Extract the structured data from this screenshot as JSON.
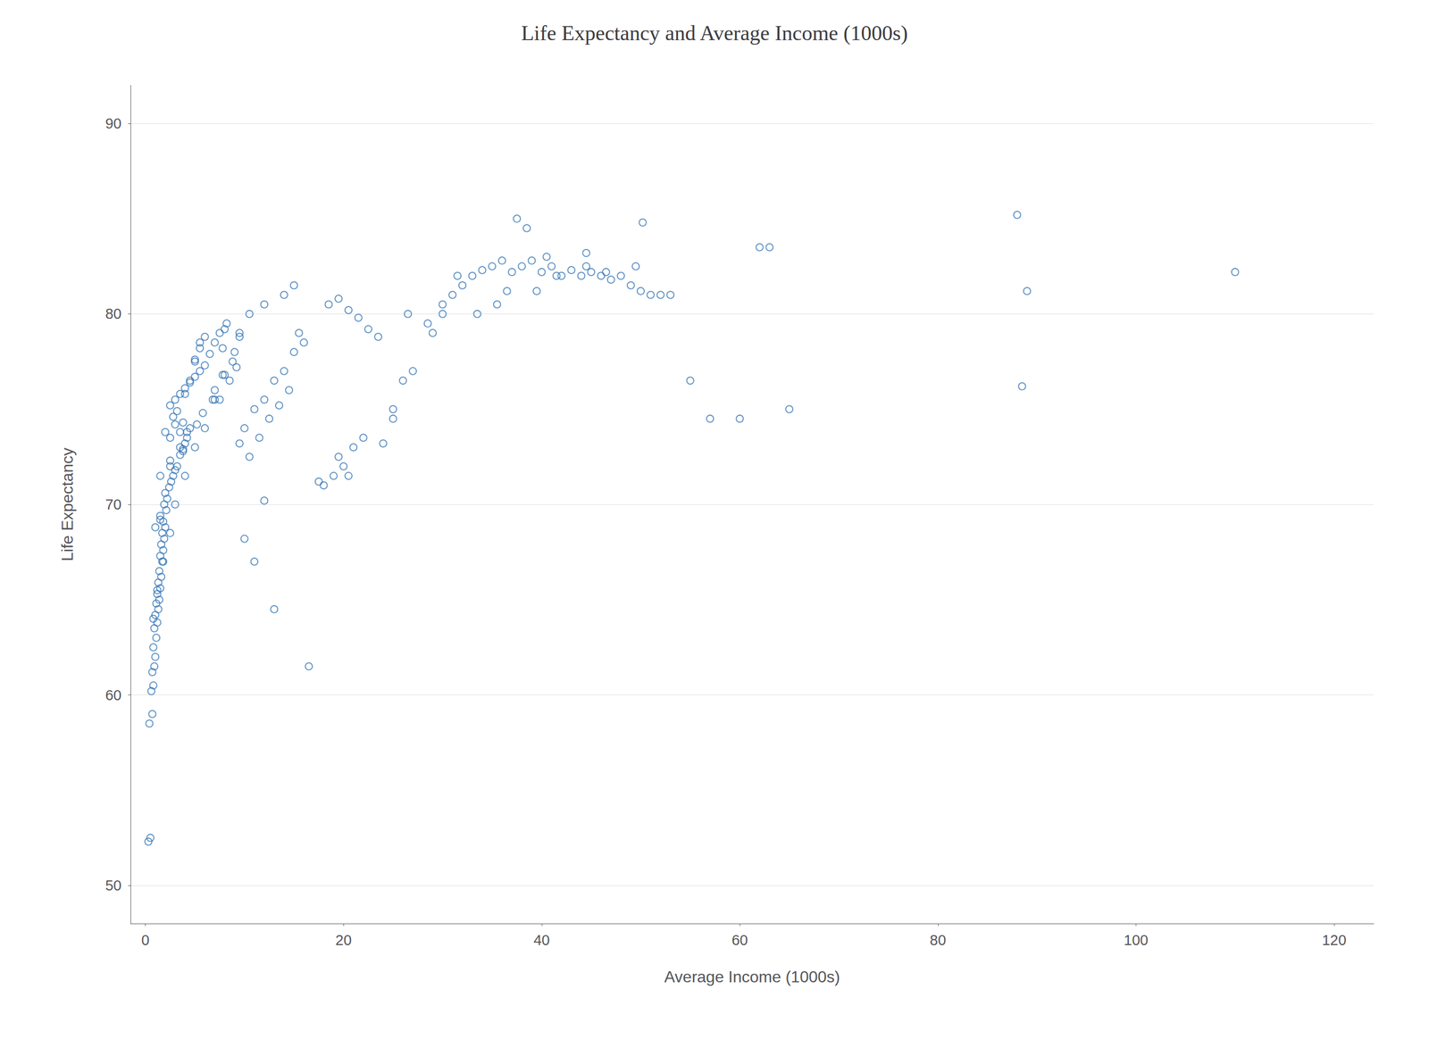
{
  "chart_data": {
    "type": "scatter",
    "title": "Life Expectancy and Average Income (1000s)",
    "xlabel": "Average Income (1000s)",
    "ylabel": "Life Expectancy",
    "xlim": [
      -1.5,
      124
    ],
    "ylim": [
      48,
      92
    ],
    "xticks": [
      0,
      20,
      40,
      60,
      80,
      100,
      120
    ],
    "yticks": [
      50,
      60,
      70,
      80,
      90
    ],
    "color": "#3575b5",
    "marker": "open-circle",
    "grid": "y",
    "points": [
      [
        0.3,
        52.3
      ],
      [
        0.5,
        52.5
      ],
      [
        0.4,
        58.5
      ],
      [
        0.7,
        59.0
      ],
      [
        0.6,
        60.2
      ],
      [
        0.8,
        60.5
      ],
      [
        0.7,
        61.2
      ],
      [
        0.9,
        61.5
      ],
      [
        1.0,
        62.0
      ],
      [
        0.8,
        62.5
      ],
      [
        1.1,
        63.0
      ],
      [
        0.9,
        63.5
      ],
      [
        1.2,
        63.8
      ],
      [
        1.0,
        64.2
      ],
      [
        1.3,
        64.5
      ],
      [
        1.1,
        64.8
      ],
      [
        1.4,
        65.0
      ],
      [
        1.2,
        65.3
      ],
      [
        1.5,
        65.6
      ],
      [
        1.3,
        65.9
      ],
      [
        1.6,
        66.2
      ],
      [
        1.4,
        66.5
      ],
      [
        1.7,
        67.0
      ],
      [
        1.5,
        67.3
      ],
      [
        1.8,
        67.6
      ],
      [
        1.6,
        67.9
      ],
      [
        1.9,
        68.2
      ],
      [
        1.7,
        68.5
      ],
      [
        2.0,
        68.8
      ],
      [
        1.8,
        69.1
      ],
      [
        1.5,
        69.4
      ],
      [
        2.1,
        69.7
      ],
      [
        1.9,
        70.0
      ],
      [
        2.2,
        70.3
      ],
      [
        2.0,
        70.6
      ],
      [
        2.4,
        70.9
      ],
      [
        2.6,
        71.2
      ],
      [
        2.8,
        71.5
      ],
      [
        3.0,
        71.8
      ],
      [
        3.2,
        72.0
      ],
      [
        2.5,
        72.3
      ],
      [
        3.5,
        72.6
      ],
      [
        3.8,
        72.9
      ],
      [
        4.0,
        73.2
      ],
      [
        4.2,
        73.5
      ],
      [
        3.5,
        73.8
      ],
      [
        4.5,
        74.0
      ],
      [
        3.8,
        74.3
      ],
      [
        2.8,
        74.6
      ],
      [
        3.2,
        74.9
      ],
      [
        2.5,
        75.2
      ],
      [
        3.0,
        75.5
      ],
      [
        3.5,
        75.8
      ],
      [
        4.0,
        76.1
      ],
      [
        4.5,
        76.4
      ],
      [
        5.0,
        76.7
      ],
      [
        5.5,
        77.0
      ],
      [
        6.0,
        77.3
      ],
      [
        5.0,
        77.6
      ],
      [
        6.5,
        77.9
      ],
      [
        5.5,
        78.2
      ],
      [
        7.0,
        78.5
      ],
      [
        6.0,
        78.8
      ],
      [
        7.5,
        79.0
      ],
      [
        8.0,
        79.2
      ],
      [
        1.0,
        68.8
      ],
      [
        1.5,
        69.2
      ],
      [
        0.8,
        64.0
      ],
      [
        1.2,
        65.5
      ],
      [
        1.8,
        67.0
      ],
      [
        2.5,
        68.5
      ],
      [
        3.0,
        70.0
      ],
      [
        4.0,
        71.5
      ],
      [
        5.0,
        73.0
      ],
      [
        6.0,
        74.0
      ],
      [
        7.0,
        75.5
      ],
      [
        8.0,
        76.8
      ],
      [
        9.0,
        78.0
      ],
      [
        9.5,
        79.0
      ],
      [
        10.0,
        74.0
      ],
      [
        11.0,
        75.0
      ],
      [
        12.0,
        75.5
      ],
      [
        13.0,
        76.5
      ],
      [
        14.0,
        77.0
      ],
      [
        15.0,
        78.0
      ],
      [
        16.0,
        78.5
      ],
      [
        15.5,
        79.0
      ],
      [
        10.5,
        72.5
      ],
      [
        11.5,
        73.5
      ],
      [
        12.5,
        74.5
      ],
      [
        13.5,
        75.2
      ],
      [
        14.5,
        76.0
      ],
      [
        10.0,
        68.2
      ],
      [
        11.0,
        67.0
      ],
      [
        12.0,
        70.2
      ],
      [
        13.0,
        64.5
      ],
      [
        16.5,
        61.5
      ],
      [
        18.0,
        71.0
      ],
      [
        19.0,
        71.5
      ],
      [
        20.0,
        72.0
      ],
      [
        21.0,
        73.0
      ],
      [
        20.5,
        71.5
      ],
      [
        22.0,
        73.5
      ],
      [
        17.5,
        71.2
      ],
      [
        19.5,
        72.5
      ],
      [
        24.0,
        73.2
      ],
      [
        25.0,
        74.5
      ],
      [
        26.0,
        76.5
      ],
      [
        27.0,
        77.0
      ],
      [
        28.5,
        79.5
      ],
      [
        30.0,
        80.0
      ],
      [
        32.0,
        81.5
      ],
      [
        33.0,
        82.0
      ],
      [
        34.0,
        82.3
      ],
      [
        35.0,
        82.5
      ],
      [
        36.0,
        82.8
      ],
      [
        37.0,
        82.2
      ],
      [
        38.0,
        82.5
      ],
      [
        39.0,
        82.8
      ],
      [
        40.0,
        82.2
      ],
      [
        41.0,
        82.5
      ],
      [
        42.0,
        82.0
      ],
      [
        43.0,
        82.3
      ],
      [
        44.0,
        82.0
      ],
      [
        45.0,
        82.2
      ],
      [
        46.0,
        82.0
      ],
      [
        47.0,
        81.8
      ],
      [
        48.0,
        82.0
      ],
      [
        49.0,
        81.5
      ],
      [
        50.0,
        81.2
      ],
      [
        51.0,
        81.0
      ],
      [
        37.5,
        85.0
      ],
      [
        38.5,
        84.5
      ],
      [
        40.5,
        83.0
      ],
      [
        44.5,
        83.2
      ],
      [
        50.2,
        84.8
      ],
      [
        52.0,
        81.0
      ],
      [
        53.0,
        81.0
      ],
      [
        55.0,
        76.5
      ],
      [
        57.0,
        74.5
      ],
      [
        60.0,
        74.5
      ],
      [
        62.0,
        83.5
      ],
      [
        63.0,
        83.5
      ],
      [
        65.0,
        75.0
      ],
      [
        88.0,
        85.2
      ],
      [
        89.0,
        81.2
      ],
      [
        88.5,
        76.2
      ],
      [
        110.0,
        82.2
      ],
      [
        30.0,
        80.5
      ],
      [
        31.0,
        81.0
      ],
      [
        29.0,
        79.0
      ],
      [
        33.5,
        80.0
      ],
      [
        36.5,
        81.2
      ],
      [
        26.5,
        80.0
      ],
      [
        8.5,
        76.5
      ],
      [
        9.2,
        77.2
      ],
      [
        7.0,
        76.0
      ],
      [
        7.5,
        75.5
      ],
      [
        9.5,
        73.2
      ],
      [
        9.5,
        78.8
      ],
      [
        4.0,
        75.8
      ],
      [
        4.5,
        76.5
      ],
      [
        5.0,
        77.5
      ],
      [
        5.5,
        78.5
      ],
      [
        7.8,
        78.2
      ],
      [
        8.2,
        79.5
      ],
      [
        10.5,
        80.0
      ],
      [
        12.0,
        80.5
      ],
      [
        14.0,
        81.0
      ],
      [
        15.0,
        81.5
      ],
      [
        18.5,
        80.5
      ],
      [
        19.5,
        80.8
      ],
      [
        20.5,
        80.2
      ],
      [
        21.5,
        79.8
      ],
      [
        22.5,
        79.2
      ],
      [
        23.5,
        78.8
      ],
      [
        25.0,
        75.0
      ],
      [
        31.5,
        82.0
      ],
      [
        35.5,
        80.5
      ],
      [
        39.5,
        81.2
      ],
      [
        41.5,
        82.0
      ],
      [
        44.5,
        82.5
      ],
      [
        46.5,
        82.2
      ],
      [
        49.5,
        82.5
      ],
      [
        2.0,
        73.8
      ],
      [
        2.5,
        73.5
      ],
      [
        3.0,
        74.2
      ],
      [
        3.5,
        73.0
      ],
      [
        4.2,
        73.8
      ],
      [
        5.8,
        74.8
      ],
      [
        6.8,
        75.5
      ],
      [
        7.8,
        76.8
      ],
      [
        8.8,
        77.5
      ],
      [
        1.5,
        71.5
      ],
      [
        2.5,
        72.0
      ],
      [
        3.8,
        72.8
      ],
      [
        5.2,
        74.2
      ]
    ]
  }
}
